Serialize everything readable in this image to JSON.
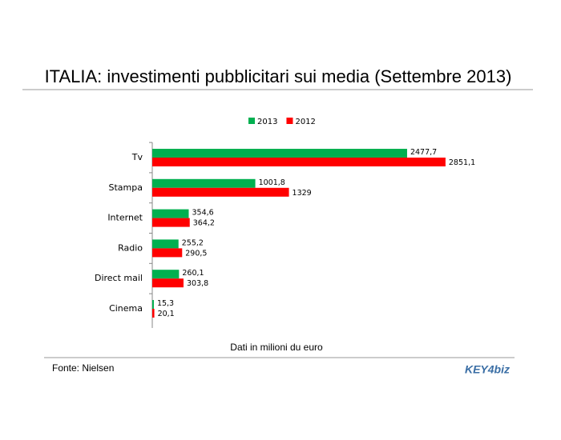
{
  "chart_data": {
    "type": "hbar",
    "title": "ITALIA: investimenti pubblicitari sui media (Settembre 2013)",
    "x_label": "Dati in milioni du euro",
    "source": "Fonte: Nielsen",
    "logo": "KEY4biz",
    "categories": [
      "Tv",
      "Stampa",
      "Internet",
      "Radio",
      "Direct mail",
      "Cinema"
    ],
    "series": [
      {
        "name": "2013",
        "color": "#00b050",
        "values": [
          2477.7,
          1001.8,
          354.6,
          255.2,
          260.1,
          15.3
        ],
        "value_labels": [
          "2477,7",
          "1001,8",
          "354,6",
          "255,2",
          "260,1",
          "15,3"
        ]
      },
      {
        "name": "2012",
        "color": "#ff0000",
        "values": [
          2851.1,
          1329,
          364.2,
          290.5,
          303.8,
          20.1
        ],
        "value_labels": [
          "2851,1",
          "1329",
          "364,2",
          "290,5",
          "303,8",
          "20,1"
        ]
      }
    ],
    "xlim": [
      0,
      3000
    ],
    "legend": "top"
  }
}
